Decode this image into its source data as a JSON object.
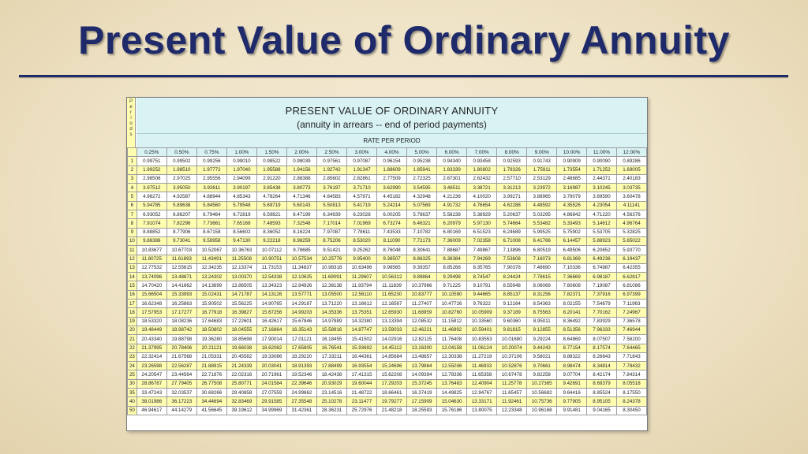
{
  "slide": {
    "title": "Present Value of Ordinary Annuity"
  },
  "table": {
    "periods_label": [
      "P",
      "e",
      "r",
      "i",
      "o",
      "d",
      "s"
    ],
    "heading": "PRESENT VALUE OF ORDINARY ANNUITY",
    "subheading": "(annuity in arrears -- end of period payments)",
    "rate_label": "RATE PER PERIOD",
    "rates": [
      "0.25%",
      "0.50%",
      "0.75%",
      "1.00%",
      "1.50%",
      "2.00%",
      "2.50%",
      "3.00%",
      "4.00%",
      "5.00%",
      "6.00%",
      "7.00%",
      "8.00%",
      "9.00%",
      "10.00%",
      "11.00%",
      "12.00%"
    ],
    "rows": [
      [
        "1",
        "0.99751",
        "0.99502",
        "0.99256",
        "0.99010",
        "0.98522",
        "0.98039",
        "0.97561",
        "0.97087",
        "0.96154",
        "0.95238",
        "0.94340",
        "0.93458",
        "0.92593",
        "0.91743",
        "0.90909",
        "0.90090",
        "0.89286"
      ],
      [
        "2",
        "1.99252",
        "1.98510",
        "1.97772",
        "1.97040",
        "1.95588",
        "1.94156",
        "1.92742",
        "1.91347",
        "1.88609",
        "1.85941",
        "1.83339",
        "1.80802",
        "1.78326",
        "1.75911",
        "1.73554",
        "1.71252",
        "1.69005"
      ],
      [
        "3",
        "2.98506",
        "2.97025",
        "2.95556",
        "2.94099",
        "2.91220",
        "2.88388",
        "2.85602",
        "2.82861",
        "2.77509",
        "2.72325",
        "2.67301",
        "2.62432",
        "2.57710",
        "2.53129",
        "2.48685",
        "2.44371",
        "2.40183"
      ],
      [
        "4",
        "3.97512",
        "3.95050",
        "3.92611",
        "3.90197",
        "3.85438",
        "3.80773",
        "3.76197",
        "3.71710",
        "3.62990",
        "3.54595",
        "3.46511",
        "3.38721",
        "3.31213",
        "3.23972",
        "3.16987",
        "3.10245",
        "3.03735"
      ],
      [
        "5",
        "4.96272",
        "4.92587",
        "4.88944",
        "4.85343",
        "4.78264",
        "4.71346",
        "4.64583",
        "4.57971",
        "4.45182",
        "4.32948",
        "4.21236",
        "4.10020",
        "3.99271",
        "3.88965",
        "3.79079",
        "3.69590",
        "3.60478"
      ],
      [
        "6",
        "5.94785",
        "5.89638",
        "5.84560",
        "5.79548",
        "5.69719",
        "5.60143",
        "5.50813",
        "5.41719",
        "5.24214",
        "5.07569",
        "4.91732",
        "4.76654",
        "4.62288",
        "4.48592",
        "4.35526",
        "4.23054",
        "4.11141"
      ],
      [
        "7",
        "6.93052",
        "6.86207",
        "6.79464",
        "6.72819",
        "6.59821",
        "6.47199",
        "6.34939",
        "6.23028",
        "6.00205",
        "5.78637",
        "5.58238",
        "5.38929",
        "5.20637",
        "5.03295",
        "4.86842",
        "4.71220",
        "4.56376"
      ],
      [
        "8",
        "7.91074",
        "7.82296",
        "7.73661",
        "7.65168",
        "7.48593",
        "7.32548",
        "7.17014",
        "7.01969",
        "6.73274",
        "6.46321",
        "6.20979",
        "5.97130",
        "5.74664",
        "5.53482",
        "5.33493",
        "5.14612",
        "4.96764"
      ],
      [
        "9",
        "8.88852",
        "8.77906",
        "8.67158",
        "8.56602",
        "8.36052",
        "8.16224",
        "7.97087",
        "7.78611",
        "7.43533",
        "7.10782",
        "6.80169",
        "6.51523",
        "6.24689",
        "5.99525",
        "5.75902",
        "5.53705",
        "5.32825"
      ],
      [
        "10",
        "9.86386",
        "9.73041",
        "9.59958",
        "9.47130",
        "9.22218",
        "8.98259",
        "8.75206",
        "8.53020",
        "8.11090",
        "7.72173",
        "7.36009",
        "7.02358",
        "6.71008",
        "6.41766",
        "6.14457",
        "5.88923",
        "5.65022"
      ],
      [
        "11",
        "10.83677",
        "10.67703",
        "10.52067",
        "10.36763",
        "10.07112",
        "9.78685",
        "9.51421",
        "9.25262",
        "8.76048",
        "8.30641",
        "7.88687",
        "7.49867",
        "7.13896",
        "6.80519",
        "6.49506",
        "6.20652",
        "5.93770"
      ],
      [
        "12",
        "11.80725",
        "11.61893",
        "11.43491",
        "11.25508",
        "10.90751",
        "10.57534",
        "10.25776",
        "9.95400",
        "9.38507",
        "8.86325",
        "8.38384",
        "7.94269",
        "7.53608",
        "7.16073",
        "6.81369",
        "6.49236",
        "6.19437"
      ],
      [
        "13",
        "12.77532",
        "12.55615",
        "12.34235",
        "12.13374",
        "11.73153",
        "11.34837",
        "10.98318",
        "10.63496",
        "9.98565",
        "9.39357",
        "8.85268",
        "8.35765",
        "7.90378",
        "7.48690",
        "7.10336",
        "6.74987",
        "6.42355"
      ],
      [
        "14",
        "13.74096",
        "13.48871",
        "13.24302",
        "13.00370",
        "12.54338",
        "12.10625",
        "11.69091",
        "11.29607",
        "10.56312",
        "9.89864",
        "9.29498",
        "8.74547",
        "8.24424",
        "7.78615",
        "7.36669",
        "6.98187",
        "6.62817"
      ],
      [
        "15",
        "14.70420",
        "14.41662",
        "14.13699",
        "13.86505",
        "13.34323",
        "12.84926",
        "12.38138",
        "11.93794",
        "11.11839",
        "10.37966",
        "9.71225",
        "9.10791",
        "8.55948",
        "8.06069",
        "7.60608",
        "7.19087",
        "6.81086"
      ],
      [
        "16",
        "15.66504",
        "15.33993",
        "15.02431",
        "14.71787",
        "14.13126",
        "13.57771",
        "13.05500",
        "12.56110",
        "11.65230",
        "10.83777",
        "10.10590",
        "9.44665",
        "8.85137",
        "8.31256",
        "7.82371",
        "7.37916",
        "6.97399"
      ],
      [
        "17",
        "16.62348",
        "16.25863",
        "15.90502",
        "15.56225",
        "14.90765",
        "14.29187",
        "13.71220",
        "13.16612",
        "12.16567",
        "11.27407",
        "10.47726",
        "9.76322",
        "9.12164",
        "8.54363",
        "8.02155",
        "7.54879",
        "7.11963"
      ],
      [
        "18",
        "17.57953",
        "17.17277",
        "16.77918",
        "16.39827",
        "15.67256",
        "14.99203",
        "14.35336",
        "13.75351",
        "12.65930",
        "11.68959",
        "10.82760",
        "10.05909",
        "9.37189",
        "8.75563",
        "8.20141",
        "7.70162",
        "7.24967"
      ],
      [
        "19",
        "18.53320",
        "18.08236",
        "17.64683",
        "17.22601",
        "16.42617",
        "15.67846",
        "14.97889",
        "14.32380",
        "13.13394",
        "12.08532",
        "11.15812",
        "10.33560",
        "9.60360",
        "8.95011",
        "8.36492",
        "7.83929",
        "7.36578"
      ],
      [
        "20",
        "19.48449",
        "18.98742",
        "18.50802",
        "18.04555",
        "17.16864",
        "16.35143",
        "15.58916",
        "14.87747",
        "13.59033",
        "12.46221",
        "11.46992",
        "10.59401",
        "9.81815",
        "9.12855",
        "8.51356",
        "7.96333",
        "7.46944"
      ],
      [
        "21",
        "20.43340",
        "19.88798",
        "19.36280",
        "18.85698",
        "17.90014",
        "17.01121",
        "16.18455",
        "15.41502",
        "14.02916",
        "12.82115",
        "11.76408",
        "10.83553",
        "10.01680",
        "9.29224",
        "8.64869",
        "8.07507",
        "7.56200"
      ],
      [
        "22",
        "21.37995",
        "20.78406",
        "20.21121",
        "19.66038",
        "18.62082",
        "17.65805",
        "16.76541",
        "15.93692",
        "14.45112",
        "13.16300",
        "12.04158",
        "11.06124",
        "10.20074",
        "9.44243",
        "8.77154",
        "8.17574",
        "7.64465"
      ],
      [
        "23",
        "22.32414",
        "21.67568",
        "21.05331",
        "20.45582",
        "19.33086",
        "18.29220",
        "17.33211",
        "16.44361",
        "14.85684",
        "13.48857",
        "12.30338",
        "11.27219",
        "10.37106",
        "9.58021",
        "8.88322",
        "8.26643",
        "7.71843"
      ],
      [
        "24",
        "23.26598",
        "22.56287",
        "21.88915",
        "21.24339",
        "20.03041",
        "18.91393",
        "17.88499",
        "16.93554",
        "15.24696",
        "13.79864",
        "12.55036",
        "11.46933",
        "10.52876",
        "9.70661",
        "8.98474",
        "8.34814",
        "7.78432"
      ],
      [
        "25",
        "24.20547",
        "23.44564",
        "22.71876",
        "22.02316",
        "20.71961",
        "19.52346",
        "18.42438",
        "17.41315",
        "15.62208",
        "14.09394",
        "12.78336",
        "11.65358",
        "10.67478",
        "9.82258",
        "9.07704",
        "8.42174",
        "7.84314"
      ],
      [
        "30",
        "28.86787",
        "27.79405",
        "26.77508",
        "25.80771",
        "24.01584",
        "22.39646",
        "20.93029",
        "19.60044",
        "17.29203",
        "15.37245",
        "13.76483",
        "12.40904",
        "11.25778",
        "10.27365",
        "9.42691",
        "8.69379",
        "8.05518"
      ],
      [
        "35",
        "33.47243",
        "32.03537",
        "30.68266",
        "29.40858",
        "27.07559",
        "24.99862",
        "23.14516",
        "21.48722",
        "18.66461",
        "16.37419",
        "14.49825",
        "12.94767",
        "11.65457",
        "10.56682",
        "9.64416",
        "8.85524",
        "8.17550"
      ],
      [
        "40",
        "38.01986",
        "36.17223",
        "34.44694",
        "32.83469",
        "29.91585",
        "27.35548",
        "25.10278",
        "23.11477",
        "19.79277",
        "17.15909",
        "15.04630",
        "13.33171",
        "11.92461",
        "10.75736",
        "9.77905",
        "8.95105",
        "8.24378"
      ],
      [
        "50",
        "46.94617",
        "44.14279",
        "41.56645",
        "39.19612",
        "34.99969",
        "31.42361",
        "28.36231",
        "25.72976",
        "21.48218",
        "18.25593",
        "15.76186",
        "13.80075",
        "12.23348",
        "10.96168",
        "9.91481",
        "9.04165",
        "8.30450"
      ]
    ]
  }
}
